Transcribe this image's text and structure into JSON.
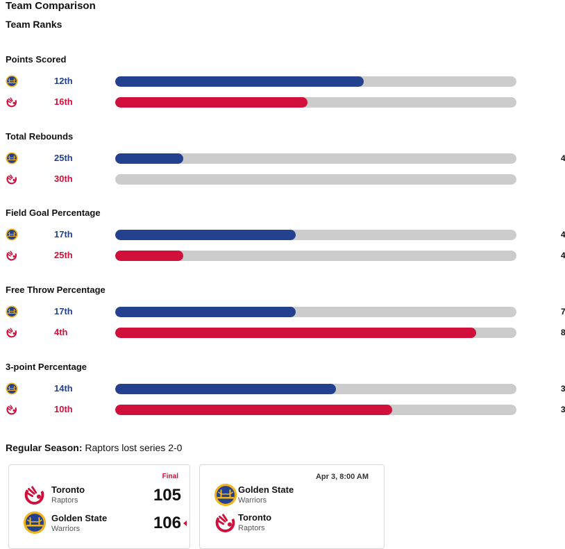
{
  "header": {
    "title": "Team Comparison",
    "subtitle": "Team Ranks"
  },
  "colors": {
    "warriors": "#23418f",
    "raptors": "#d0103a",
    "track": "#cccccc"
  },
  "stats": [
    {
      "title": "Points Scored",
      "warriors": {
        "rank": "12th",
        "value": "",
        "fill": 0.62
      },
      "raptors": {
        "rank": "16th",
        "value": "",
        "fill": 0.48
      }
    },
    {
      "title": "Total Rebounds",
      "warriors": {
        "rank": "25th",
        "value": "4",
        "fill": 0.17
      },
      "raptors": {
        "rank": "30th",
        "value": "",
        "fill": 0.0
      }
    },
    {
      "title": "Field Goal Percentage",
      "warriors": {
        "rank": "17th",
        "value": "4",
        "fill": 0.45
      },
      "raptors": {
        "rank": "25th",
        "value": "4",
        "fill": 0.17
      }
    },
    {
      "title": "Free Throw Percentage",
      "warriors": {
        "rank": "17th",
        "value": "7",
        "fill": 0.45
      },
      "raptors": {
        "rank": "4th",
        "value": "8",
        "fill": 0.9
      }
    },
    {
      "title": "3-point Percentage",
      "warriors": {
        "rank": "14th",
        "value": "3",
        "fill": 0.55
      },
      "raptors": {
        "rank": "10th",
        "value": "3",
        "fill": 0.69
      }
    }
  ],
  "season": {
    "label": "Regular Season:",
    "text": " Raptors lost series 2-0"
  },
  "games": [
    {
      "status": "Final",
      "team1": {
        "city": "Toronto",
        "name": "Raptors",
        "score": "105"
      },
      "team2": {
        "city": "Golden State",
        "name": "Warriors",
        "score": "106"
      }
    },
    {
      "status": "Apr 3, 8:00 AM",
      "team1": {
        "city": "Golden State",
        "name": "Warriors"
      },
      "team2": {
        "city": "Toronto",
        "name": "Raptors"
      }
    }
  ]
}
